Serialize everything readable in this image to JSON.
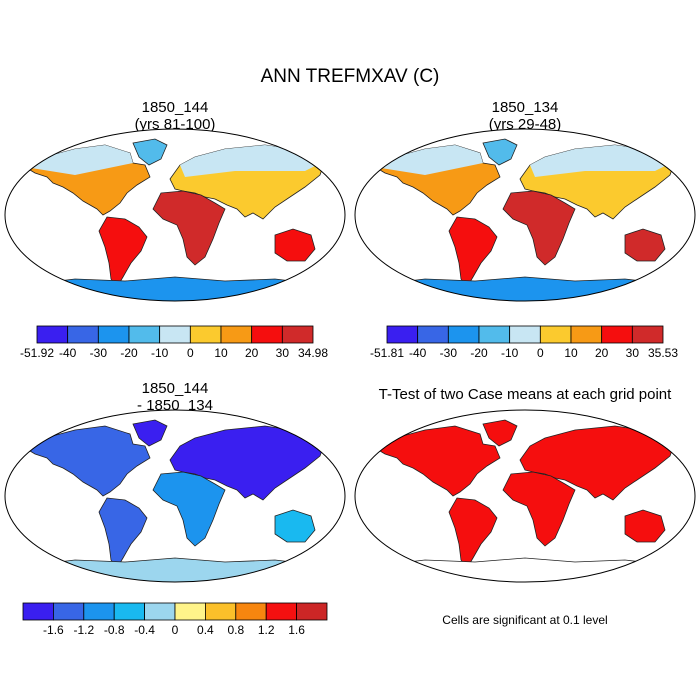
{
  "title": "ANN TREFMXAV (C)",
  "chart_data": [
    {
      "type": "heatmap",
      "map": "global robinson",
      "title_line1": "1850_144",
      "title_line2": "(yrs 81-100)",
      "colorbar": {
        "colors": [
          "#3a1ff0",
          "#3866e6",
          "#1c94ee",
          "#52bbeb",
          "#c8e6f3",
          "#fbca2e",
          "#f79a15",
          "#f50e0e",
          "#d02a2a"
        ],
        "labels": [
          "-51.92",
          "-40",
          "-30",
          "-20",
          "-10",
          "0",
          "10",
          "20",
          "30",
          "34.98"
        ]
      }
    },
    {
      "type": "heatmap",
      "map": "global robinson",
      "title_line1": "1850_134",
      "title_line2": "(yrs 29-48)",
      "colorbar": {
        "colors": [
          "#3a1ff0",
          "#3866e6",
          "#1c94ee",
          "#52bbeb",
          "#c8e6f3",
          "#fbca2e",
          "#f79a15",
          "#f50e0e",
          "#d02a2a"
        ],
        "labels": [
          "-51.81",
          "-40",
          "-30",
          "-20",
          "-10",
          "0",
          "10",
          "20",
          "30",
          "35.53"
        ]
      }
    },
    {
      "type": "heatmap",
      "map": "global robinson",
      "title_line1": "1850_144",
      "title_line2": "- 1850_134",
      "colorbar": {
        "colors": [
          "#3a1ff0",
          "#3866e6",
          "#1c94ee",
          "#19b9f0",
          "#9cd6ee",
          "#fff48a",
          "#fbc02a",
          "#f7860f",
          "#f51010",
          "#cc2626"
        ],
        "labels": [
          "-1.6",
          "-1.2",
          "-0.8",
          "-0.4",
          "0",
          "0.4",
          "0.8",
          "1.2",
          "1.6"
        ]
      }
    },
    {
      "type": "heatmap",
      "map": "global robinson",
      "title": "T-Test of two Case means at each grid point",
      "note": "Cells are significant at 0.1 level",
      "significant_color": "#f50e0e"
    }
  ]
}
